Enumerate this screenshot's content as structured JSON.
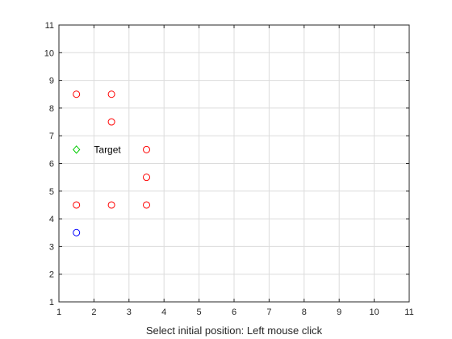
{
  "chart_data": {
    "type": "scatter",
    "title": "",
    "xlabel": "Select initial position: Left mouse click",
    "ylabel": "",
    "xlim": [
      1,
      11
    ],
    "ylim": [
      1,
      11
    ],
    "xticks": [
      1,
      2,
      3,
      4,
      5,
      6,
      7,
      8,
      9,
      10,
      11
    ],
    "yticks": [
      1,
      2,
      3,
      4,
      5,
      6,
      7,
      8,
      9,
      10,
      11
    ],
    "grid": true,
    "series": [
      {
        "marker": "circle",
        "color": "#ff0000",
        "points": [
          {
            "x": 1.5,
            "y": 8.5
          },
          {
            "x": 2.5,
            "y": 8.5
          },
          {
            "x": 2.5,
            "y": 7.5
          },
          {
            "x": 3.5,
            "y": 6.5
          },
          {
            "x": 3.5,
            "y": 5.5
          },
          {
            "x": 1.5,
            "y": 4.5
          },
          {
            "x": 2.5,
            "y": 4.5
          },
          {
            "x": 3.5,
            "y": 4.5
          }
        ]
      },
      {
        "marker": "diamond",
        "color": "#00cc00",
        "points": [
          {
            "x": 1.5,
            "y": 6.5
          }
        ]
      },
      {
        "marker": "circle",
        "color": "#0000ff",
        "points": [
          {
            "x": 1.5,
            "y": 3.5
          }
        ]
      }
    ],
    "annotations": [
      {
        "text": "Target",
        "x": 2.0,
        "y": 6.5
      }
    ]
  }
}
